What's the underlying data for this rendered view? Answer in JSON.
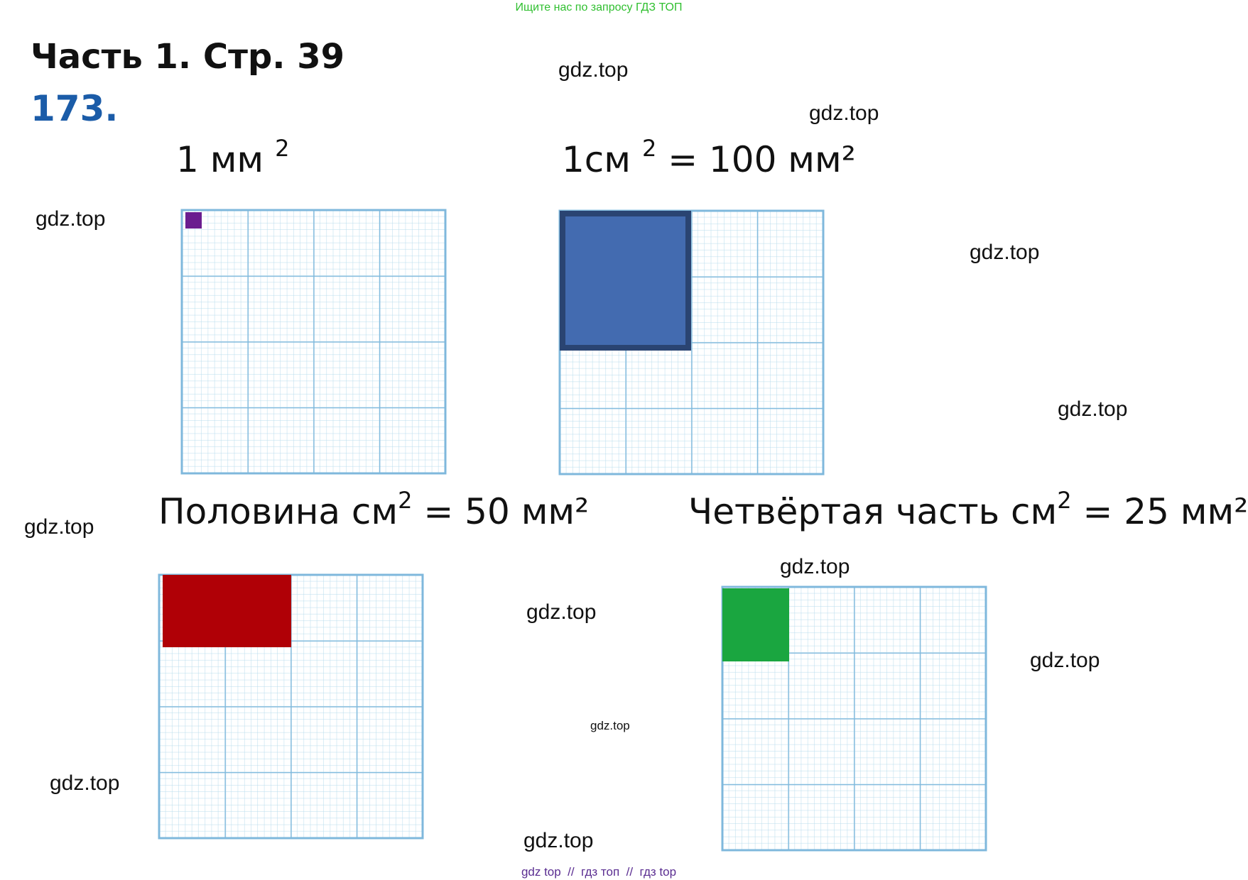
{
  "header": {
    "banner": "Ищите нас по запросу ГДЗ ТОП",
    "title": "Часть 1. Стр. 39",
    "number": "173."
  },
  "panels": [
    {
      "before": "1 мм",
      "sup": "2",
      "after": ""
    },
    {
      "before": "1см",
      "sup": "2",
      "after": " = 100 мм²"
    },
    {
      "before": "Половина см",
      "sup": "2",
      "after": " = 50 мм²"
    },
    {
      "before": "Четвёртая часть см",
      "sup": "2",
      "after": " = 25 мм²"
    }
  ],
  "watermarks": [
    "gdz.top",
    "gdz.top",
    "gdz.top",
    "gdz.top",
    "gdz.top",
    "gdz.top",
    "gdz.top",
    "gdz.top",
    "gdz.top",
    "gdz.top",
    "gdz.top",
    "gdz.top"
  ],
  "footer": "gdz top  //  гдз топ  //  гдз top"
}
